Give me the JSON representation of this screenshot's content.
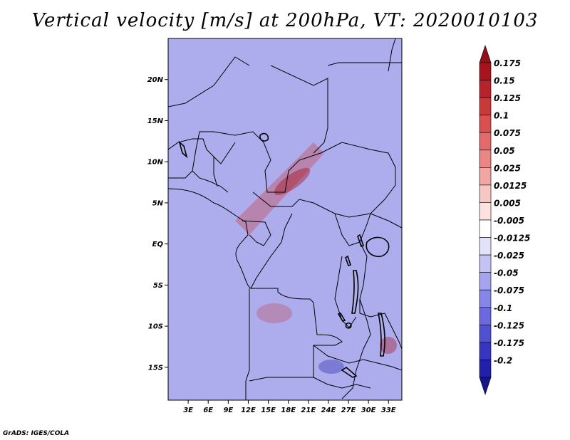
{
  "title": "Vertical velocity [m/s] at 200hPa, VT: 2020010103",
  "credit": "GrADS: IGES/COLA",
  "map": {
    "variable": "Vertical velocity",
    "units": "m/s",
    "level": "200hPa",
    "valid_time": "2020010103",
    "lon_range": [
      0,
      35
    ],
    "lat_range": [
      -19,
      25
    ],
    "lat_ticks": [
      {
        "value": 20,
        "label": "20N"
      },
      {
        "value": 15,
        "label": "15N"
      },
      {
        "value": 10,
        "label": "10N"
      },
      {
        "value": 5,
        "label": "5N"
      },
      {
        "value": 0,
        "label": "EQ"
      },
      {
        "value": -5,
        "label": "5S"
      },
      {
        "value": -10,
        "label": "10S"
      },
      {
        "value": -15,
        "label": "15S"
      }
    ],
    "lon_ticks": [
      {
        "value": 3,
        "label": "3E"
      },
      {
        "value": 6,
        "label": "6E"
      },
      {
        "value": 9,
        "label": "9E"
      },
      {
        "value": 12,
        "label": "12E"
      },
      {
        "value": 15,
        "label": "15E"
      },
      {
        "value": 18,
        "label": "18E"
      },
      {
        "value": 21,
        "label": "21E"
      },
      {
        "value": 24,
        "label": "24E"
      },
      {
        "value": 27,
        "label": "27E"
      },
      {
        "value": 30,
        "label": "30E"
      },
      {
        "value": 33,
        "label": "33E"
      }
    ]
  },
  "colorbar": {
    "levels": [
      {
        "label": "0.175",
        "color": "#a8141e"
      },
      {
        "label": "0.15",
        "color": "#b8232a"
      },
      {
        "label": "0.125",
        "color": "#c83a3a"
      },
      {
        "label": "0.1",
        "color": "#d85050"
      },
      {
        "label": "0.075",
        "color": "#e26a68"
      },
      {
        "label": "0.05",
        "color": "#ea8683"
      },
      {
        "label": "0.025",
        "color": "#f2a6a2"
      },
      {
        "label": "0.0125",
        "color": "#f8c6c3"
      },
      {
        "label": "0.005",
        "color": "#fde2e0"
      },
      {
        "label": "-0.005",
        "color": "#ffffff"
      },
      {
        "label": "-0.0125",
        "color": "#e2e2fb"
      },
      {
        "label": "-0.025",
        "color": "#c3c3f6"
      },
      {
        "label": "-0.05",
        "color": "#a4a4ef"
      },
      {
        "label": "-0.075",
        "color": "#8686e6"
      },
      {
        "label": "-0.1",
        "color": "#6a6ade"
      },
      {
        "label": "-0.125",
        "color": "#5050d2"
      },
      {
        "label": "-0.175",
        "color": "#3636c0"
      },
      {
        "label": "-0.2",
        "color": "#2020a8"
      }
    ],
    "top_arrow_color": "#921018",
    "bottom_arrow_color": "#14148c"
  }
}
